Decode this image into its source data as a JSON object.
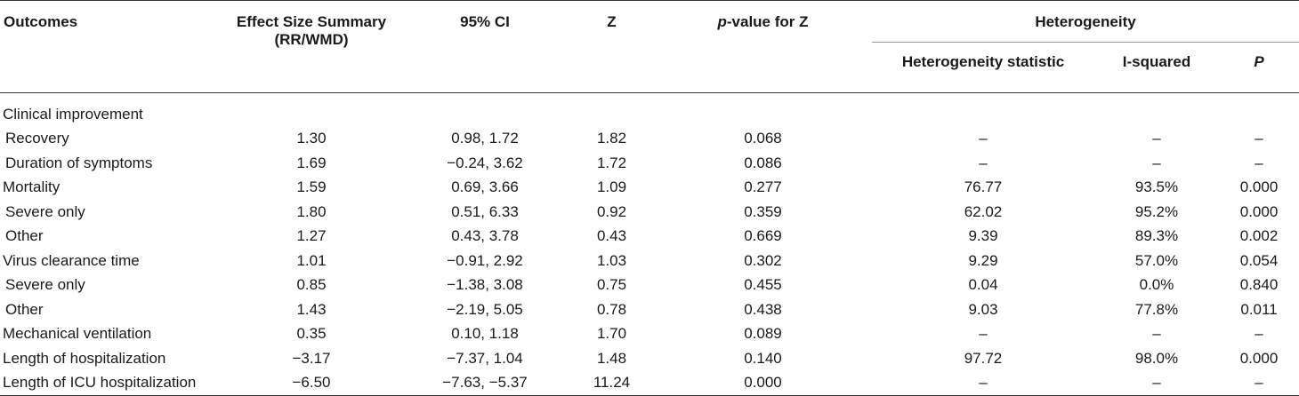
{
  "table": {
    "headers": {
      "outcomes": "Outcomes",
      "effect_size_line1": "Effect Size Summary",
      "effect_size_line2": "(RR/WMD)",
      "ci": "95% CI",
      "z": "Z",
      "pvalue_italic": "p",
      "pvalue_rest": "-value for Z",
      "heterogeneity": "Heterogeneity",
      "het_statistic": "Heterogeneity statistic",
      "i_squared": "I-squared",
      "p": "P"
    },
    "rows": [
      {
        "label": "Clinical improvement",
        "indent": false,
        "effect": "",
        "ci": "",
        "z": "",
        "pz": "",
        "het": "",
        "i2": "",
        "p": ""
      },
      {
        "label": "Recovery",
        "indent": true,
        "effect": "1.30",
        "ci": "0.98, 1.72",
        "z": "1.82",
        "pz": "0.068",
        "het": "–",
        "i2": "–",
        "p": "–"
      },
      {
        "label": "Duration of symptoms",
        "indent": true,
        "effect": "1.69",
        "ci": "−0.24, 3.62",
        "z": "1.72",
        "pz": "0.086",
        "het": "–",
        "i2": "–",
        "p": "–"
      },
      {
        "label": "Mortality",
        "indent": false,
        "effect": "1.59",
        "ci": "0.69, 3.66",
        "z": "1.09",
        "pz": "0.277",
        "het": "76.77",
        "i2": "93.5%",
        "p": "0.000"
      },
      {
        "label": "Severe only",
        "indent": true,
        "effect": "1.80",
        "ci": "0.51, 6.33",
        "z": "0.92",
        "pz": "0.359",
        "het": "62.02",
        "i2": "95.2%",
        "p": "0.000"
      },
      {
        "label": "Other",
        "indent": true,
        "effect": "1.27",
        "ci": "0.43, 3.78",
        "z": "0.43",
        "pz": "0.669",
        "het": "9.39",
        "i2": "89.3%",
        "p": "0.002"
      },
      {
        "label": "Virus clearance time",
        "indent": false,
        "effect": "1.01",
        "ci": "−0.91, 2.92",
        "z": "1.03",
        "pz": "0.302",
        "het": "9.29",
        "i2": "57.0%",
        "p": "0.054"
      },
      {
        "label": "Severe only",
        "indent": true,
        "effect": "0.85",
        "ci": "−1.38, 3.08",
        "z": "0.75",
        "pz": "0.455",
        "het": "0.04",
        "i2": "0.0%",
        "p": "0.840"
      },
      {
        "label": "Other",
        "indent": true,
        "effect": "1.43",
        "ci": "−2.19, 5.05",
        "z": "0.78",
        "pz": "0.438",
        "het": "9.03",
        "i2": "77.8%",
        "p": "0.011"
      },
      {
        "label": "Mechanical ventilation",
        "indent": false,
        "effect": "0.35",
        "ci": "0.10, 1.18",
        "z": "1.70",
        "pz": "0.089",
        "het": "–",
        "i2": "–",
        "p": "–"
      },
      {
        "label": "Length of hospitalization",
        "indent": false,
        "effect": "−3.17",
        "ci": "−7.37, 1.04",
        "z": "1.48",
        "pz": "0.140",
        "het": "97.72",
        "i2": "98.0%",
        "p": "0.000"
      },
      {
        "label": "Length of ICU hospitalization",
        "indent": false,
        "effect": "−6.50",
        "ci": "−7.63, −5.37",
        "z": "11.24",
        "pz": "0.000",
        "het": "–",
        "i2": "–",
        "p": "–"
      }
    ]
  }
}
